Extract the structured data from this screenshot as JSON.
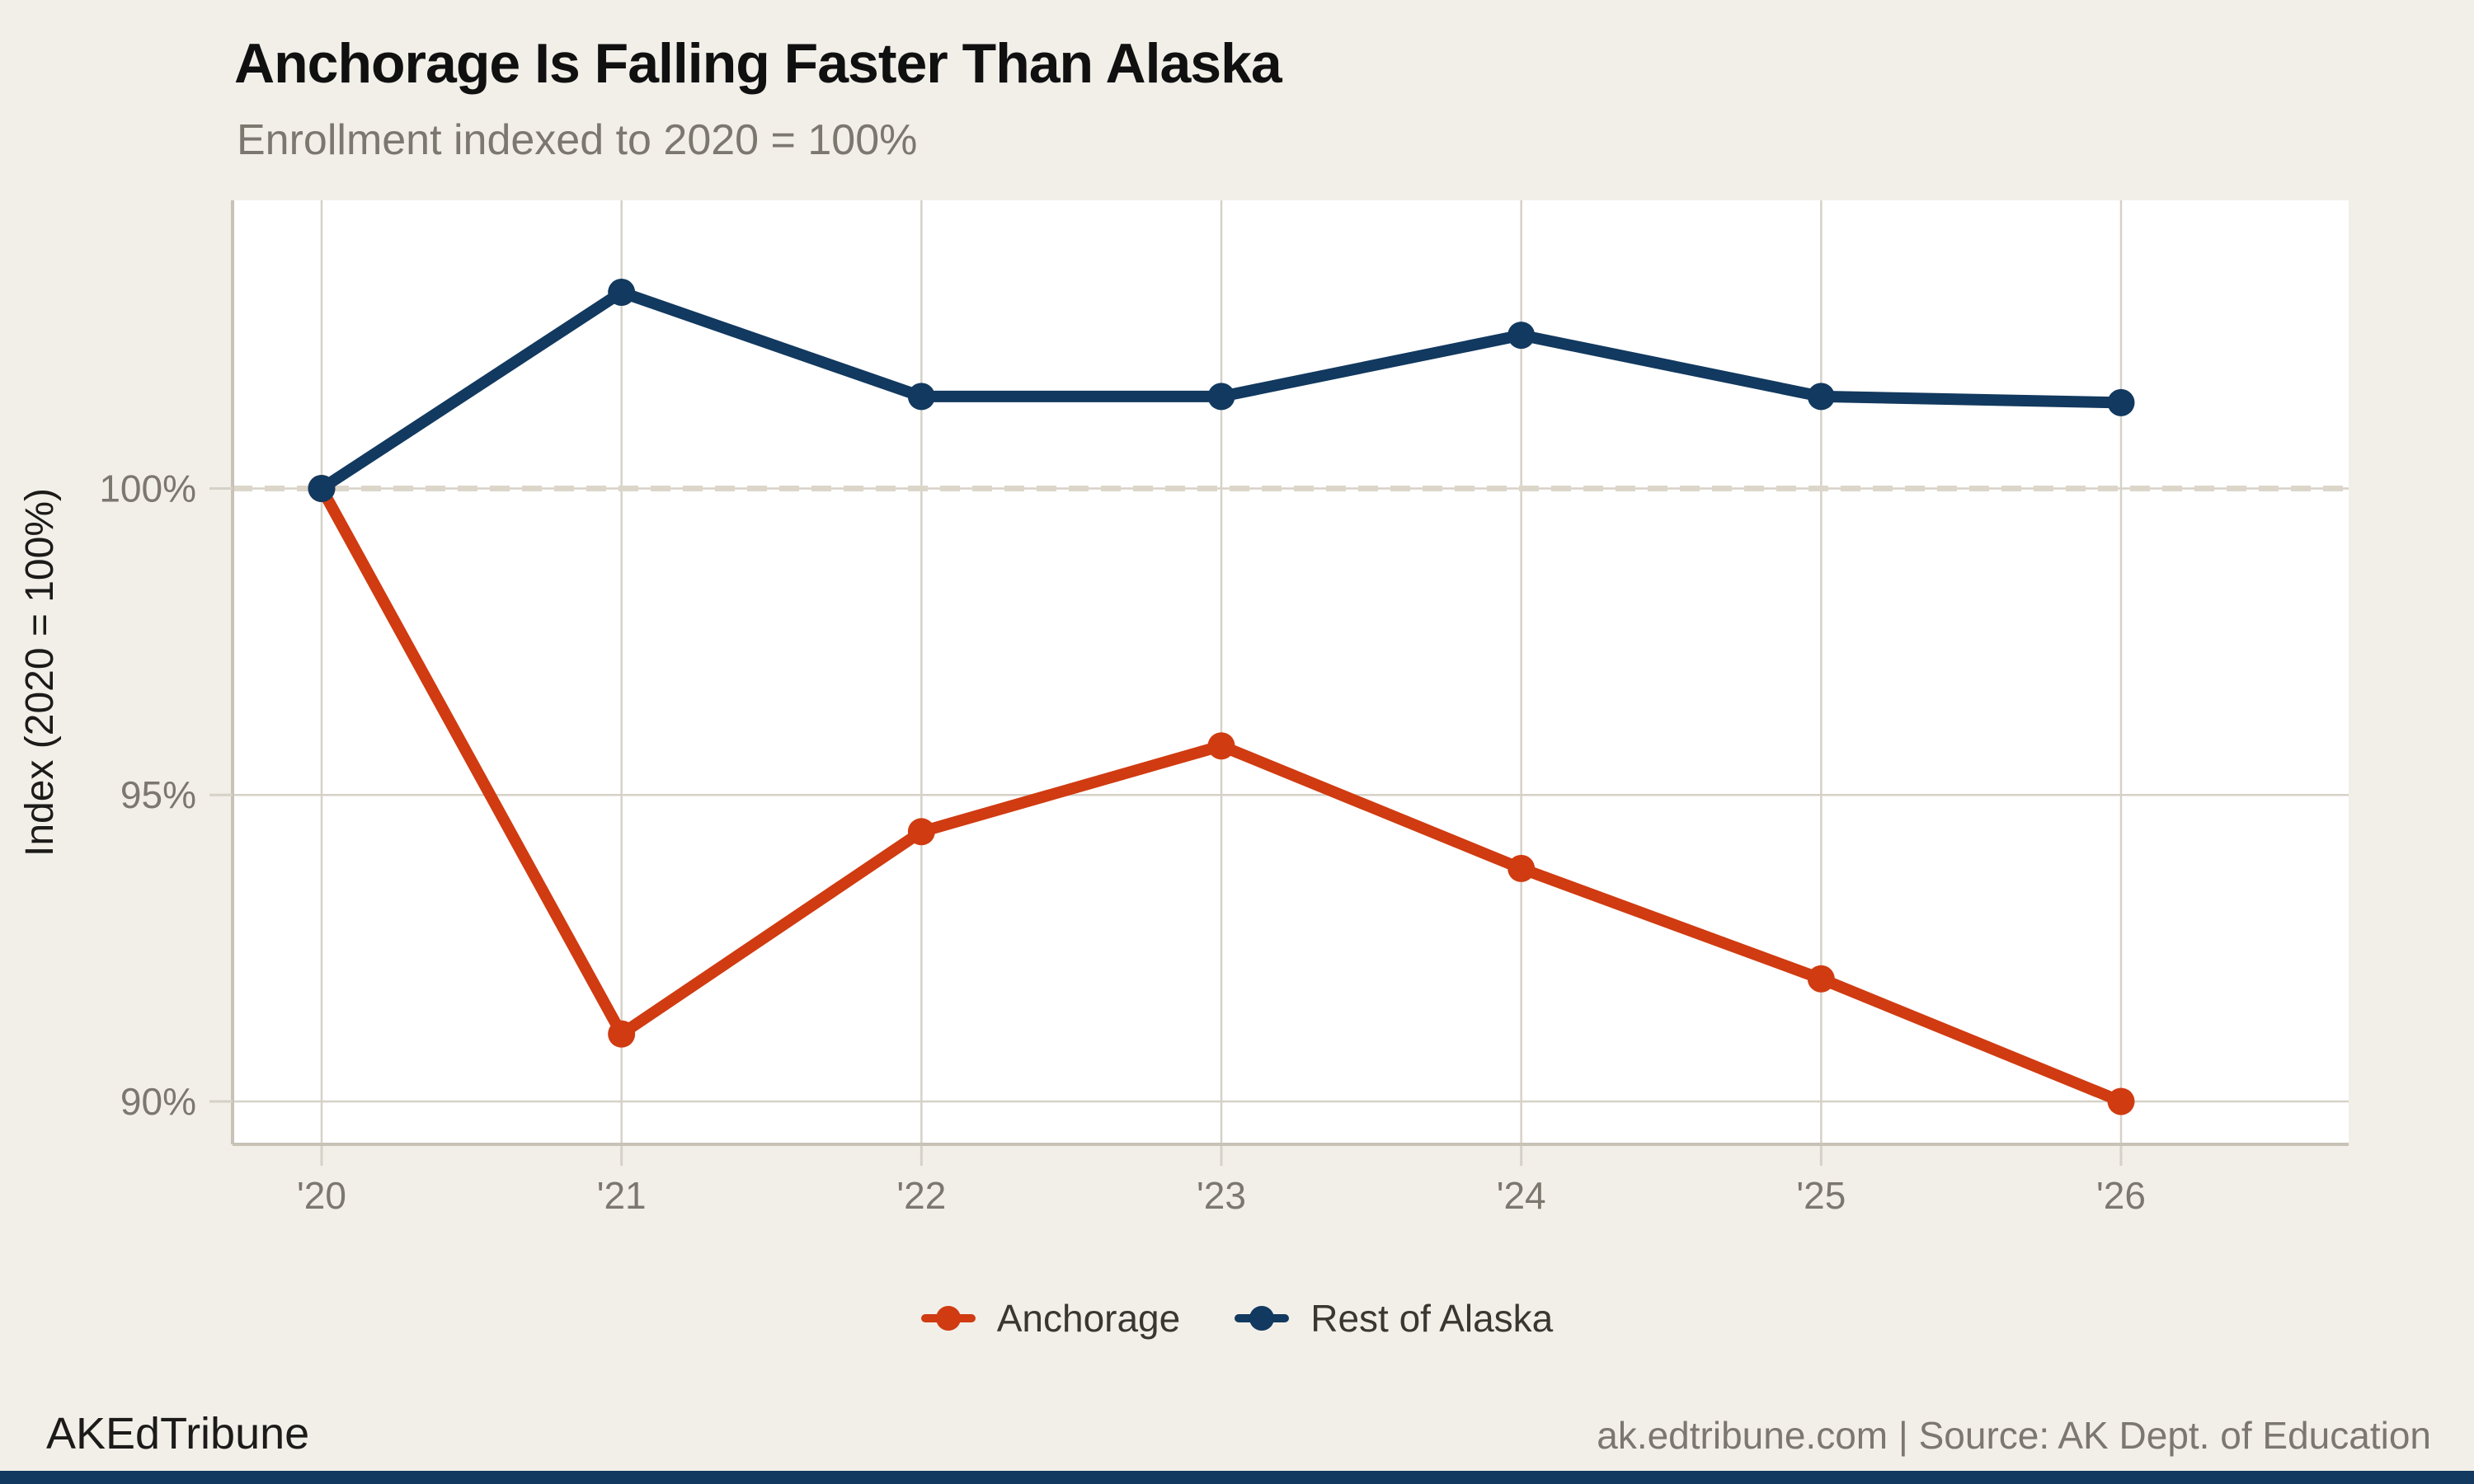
{
  "page": {
    "title": "Anchorage Is Falling Faster Than Alaska",
    "subtitle": "Enrollment indexed to 2020 = 100%",
    "background_color": "#f2efe9",
    "accent_bar_color": "#12395f"
  },
  "chart_data": {
    "type": "line",
    "title": "Anchorage Is Falling Faster Than Alaska",
    "subtitle": "Enrollment indexed to 2020 = 100%",
    "x_labels": [
      "'20",
      "'21",
      "'22",
      "'23",
      "'24",
      "'25",
      "'26"
    ],
    "x_years": [
      2020,
      2021,
      2022,
      2023,
      2024,
      2025,
      2026
    ],
    "series": [
      {
        "name": "Anchorage",
        "color": "#d03b11",
        "values": [
          100,
          91.1,
          94.4,
          95.8,
          93.8,
          92.0,
          90.0
        ]
      },
      {
        "name": "Rest of Alaska",
        "color": "#12395f",
        "values": [
          100,
          103.2,
          101.5,
          101.5,
          102.5,
          101.5,
          101.4
        ]
      }
    ],
    "xlabel": "",
    "ylabel": "Index (2020 = 100%)",
    "yticks": [
      {
        "value": 100,
        "label": "100%"
      },
      {
        "value": 95,
        "label": "95%"
      },
      {
        "value": 90,
        "label": "90%"
      }
    ],
    "ylim": [
      89.3,
      104.7
    ],
    "reference_line": {
      "value": 100,
      "style": "dashed"
    },
    "grid": true,
    "plot_background": "#ffffff",
    "gridline_color": "#d6d1c7",
    "spine_color": "#c8c2b7",
    "dashed_line_color": "#dcd6ca",
    "legend_position": "bottom"
  },
  "footer": {
    "brand": "AKEdTribune",
    "source": "ak.edtribune.com | Source: AK Dept. of Education"
  }
}
